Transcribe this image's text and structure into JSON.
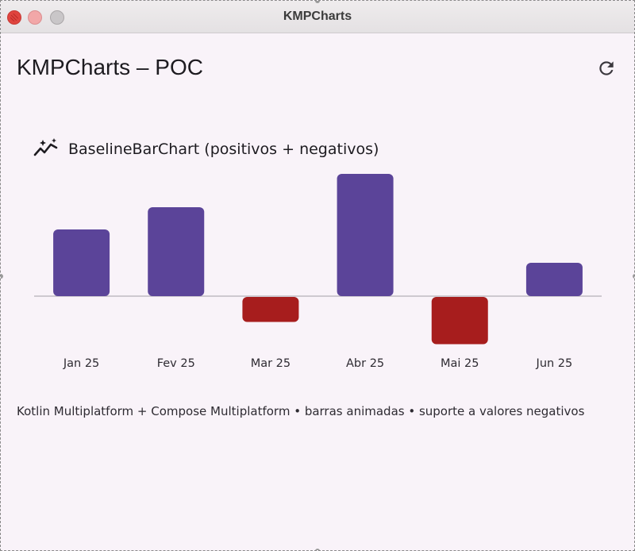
{
  "window": {
    "title": "KMPCharts"
  },
  "header": {
    "title": "KMPCharts – POC",
    "refresh_icon": "refresh-icon"
  },
  "chart_header": {
    "icon": "auto-graph-icon",
    "title": "BaselineBarChart (positivos + negativos)"
  },
  "chart_data": {
    "type": "bar",
    "title": "BaselineBarChart (positivos + negativos)",
    "categories": [
      "Jan 25",
      "Fev 25",
      "Mar 25",
      "Abr 25",
      "Mai 25",
      "Jun 25"
    ],
    "values": [
      12,
      16,
      -4.5,
      22,
      -8.5,
      6
    ],
    "baseline": 0,
    "ylim": [
      -9,
      22
    ],
    "grid": false,
    "colors": {
      "positive": "#5b4499",
      "negative": "#a71d1d",
      "baseline": "#b5b0b8"
    }
  },
  "footer": {
    "description": "Kotlin Multiplatform + Compose Multiplatform • barras animadas • suporte a valores negativos"
  }
}
